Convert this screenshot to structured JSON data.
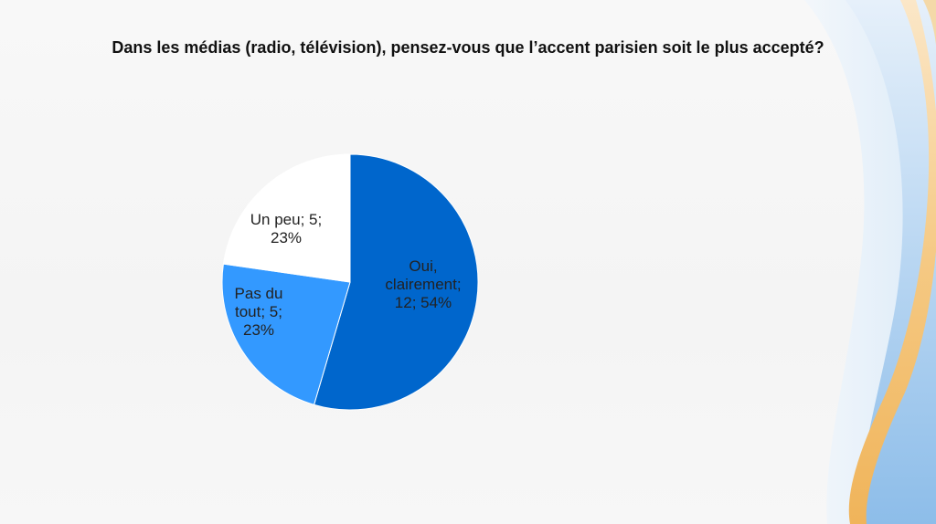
{
  "title": "Dans les médias (radio, télévision), pensez-vous que l’accent parisien soit le plus accepté?",
  "chart_data": {
    "type": "pie",
    "slices": [
      {
        "category": "Oui, clairement",
        "count": 12,
        "percent": 54,
        "color": "#0066cc",
        "label_lines": [
          "Oui,",
          "clairement;",
          "12; 54%"
        ]
      },
      {
        "category": "Pas du tout",
        "count": 5,
        "percent": 23,
        "color": "#3399ff",
        "label_lines": [
          "Pas du",
          "tout; 5;",
          "23%"
        ]
      },
      {
        "category": "Un peu",
        "count": 5,
        "percent": 23,
        "color": "#ffffff",
        "label_lines": [
          "Un peu; 5;",
          "23%"
        ]
      }
    ]
  }
}
